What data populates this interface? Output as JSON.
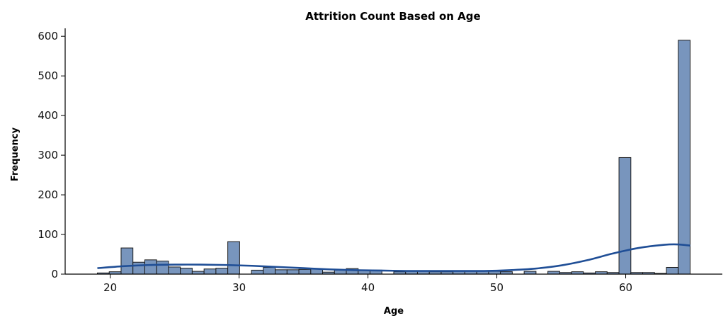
{
  "chart_data": {
    "type": "bar",
    "subtype": "histogram_with_kde",
    "title": "Attrition Count Based on Age",
    "xlabel": "Age",
    "ylabel": "Frequency",
    "xlim": [
      16.5,
      67.5
    ],
    "ylim": [
      0,
      620
    ],
    "x_ticks": [
      20,
      30,
      40,
      50,
      60
    ],
    "y_ticks": [
      0,
      100,
      200,
      300,
      400,
      500,
      600
    ],
    "grid": false,
    "bins": {
      "start": 19,
      "width": 0.92,
      "values": [
        3,
        6,
        66,
        30,
        36,
        33,
        18,
        15,
        7,
        13,
        15,
        82,
        0,
        10,
        17,
        11,
        11,
        12,
        13,
        5,
        10,
        14,
        9,
        10,
        0,
        6,
        7,
        8,
        6,
        6,
        8,
        8,
        8,
        7,
        6,
        0,
        7,
        0,
        7,
        4,
        6,
        3,
        6,
        4,
        294,
        4,
        4,
        2,
        17,
        590
      ]
    },
    "kde": {
      "x": [
        19,
        21,
        23,
        25,
        27,
        29,
        31,
        33,
        35,
        37,
        39,
        41,
        43,
        45,
        47,
        49,
        51,
        53,
        55,
        57,
        59,
        61,
        63,
        64,
        65
      ],
      "y": [
        15,
        20,
        23,
        24,
        24,
        23,
        21,
        18,
        15,
        12,
        10,
        9,
        8,
        8,
        8,
        8,
        10,
        14,
        22,
        35,
        52,
        66,
        74,
        75,
        72
      ]
    },
    "colors": {
      "bar_fill": "#7895bd",
      "bar_edge": "#1b1b1b",
      "kde_line": "#1f4e96"
    }
  }
}
